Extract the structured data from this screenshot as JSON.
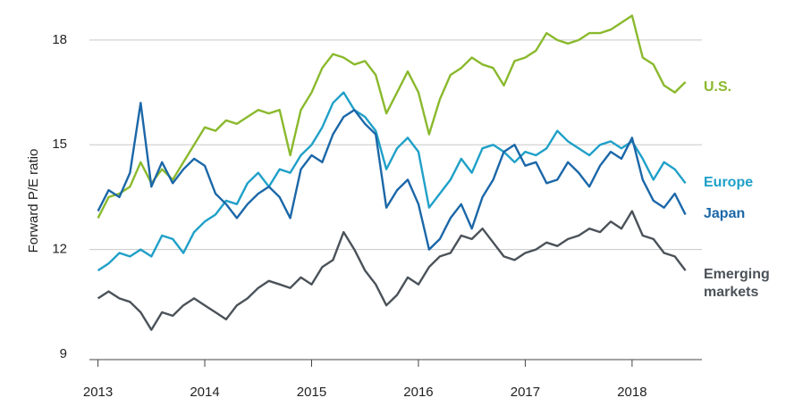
{
  "chart_data": {
    "type": "line",
    "ylabel": "Forward P/E ratio",
    "x": [
      2013.0,
      2013.1,
      2013.2,
      2013.3,
      2013.4,
      2013.5,
      2013.6,
      2013.7,
      2013.8,
      2013.9,
      2014.0,
      2014.1,
      2014.2,
      2014.3,
      2014.4,
      2014.5,
      2014.6,
      2014.7,
      2014.8,
      2014.9,
      2015.0,
      2015.1,
      2015.2,
      2015.3,
      2015.4,
      2015.5,
      2015.6,
      2015.7,
      2015.8,
      2015.9,
      2016.0,
      2016.1,
      2016.2,
      2016.3,
      2016.4,
      2016.5,
      2016.6,
      2016.7,
      2016.8,
      2016.9,
      2017.0,
      2017.1,
      2017.2,
      2017.3,
      2017.4,
      2017.5,
      2017.6,
      2017.7,
      2017.8,
      2017.9,
      2018.0,
      2018.1,
      2018.2,
      2018.3,
      2018.4,
      2018.5
    ],
    "series": [
      {
        "name": "U.S.",
        "color": "#8ab92d",
        "values": [
          12.9,
          13.5,
          13.6,
          13.8,
          14.5,
          13.9,
          14.3,
          14.0,
          14.5,
          15.0,
          15.5,
          15.4,
          15.7,
          15.6,
          15.8,
          16.0,
          15.9,
          16.0,
          14.7,
          16.0,
          16.5,
          17.2,
          17.6,
          17.5,
          17.3,
          17.4,
          17.0,
          15.9,
          16.5,
          17.1,
          16.5,
          15.3,
          16.3,
          17.0,
          17.2,
          17.5,
          17.3,
          17.2,
          16.7,
          17.4,
          17.5,
          17.7,
          18.2,
          18.0,
          17.9,
          18.0,
          18.2,
          18.2,
          18.3,
          18.5,
          18.7,
          17.5,
          17.3,
          16.7,
          16.5,
          16.8
        ]
      },
      {
        "name": "Europe",
        "color": "#1fa0c8",
        "values": [
          11.4,
          11.6,
          11.9,
          11.8,
          12.0,
          11.8,
          12.4,
          12.3,
          11.9,
          12.5,
          12.8,
          13.0,
          13.4,
          13.3,
          13.9,
          14.2,
          13.8,
          14.3,
          14.2,
          14.7,
          15.0,
          15.5,
          16.2,
          16.5,
          16.0,
          15.8,
          15.4,
          14.3,
          14.9,
          15.2,
          14.8,
          13.2,
          13.6,
          14.0,
          14.6,
          14.2,
          14.9,
          15.0,
          14.8,
          14.5,
          14.8,
          14.7,
          14.9,
          15.4,
          15.1,
          14.9,
          14.7,
          15.0,
          15.1,
          14.9,
          15.1,
          14.6,
          14.0,
          14.5,
          14.3,
          13.9
        ]
      },
      {
        "name": "Japan",
        "color": "#1b67a8",
        "values": [
          13.1,
          13.7,
          13.5,
          14.2,
          16.2,
          13.8,
          14.5,
          13.9,
          14.3,
          14.6,
          14.4,
          13.6,
          13.3,
          12.9,
          13.3,
          13.6,
          13.8,
          13.5,
          12.9,
          14.3,
          14.7,
          14.5,
          15.3,
          15.8,
          16.0,
          15.6,
          15.3,
          13.2,
          13.7,
          14.0,
          13.3,
          12.0,
          12.3,
          12.9,
          13.3,
          12.6,
          13.5,
          14.0,
          14.8,
          15.0,
          14.4,
          14.5,
          13.9,
          14.0,
          14.5,
          14.2,
          13.8,
          14.4,
          14.8,
          14.6,
          15.2,
          14.0,
          13.4,
          13.2,
          13.6,
          13.0
        ]
      },
      {
        "name": "Emerging markets",
        "color": "#4b5259",
        "values": [
          10.6,
          10.8,
          10.6,
          10.5,
          10.2,
          9.7,
          10.2,
          10.1,
          10.4,
          10.6,
          10.4,
          10.2,
          10.0,
          10.4,
          10.6,
          10.9,
          11.1,
          11.0,
          10.9,
          11.2,
          11.0,
          11.5,
          11.7,
          12.5,
          12.0,
          11.4,
          11.0,
          10.4,
          10.7,
          11.2,
          11.0,
          11.5,
          11.8,
          11.9,
          12.4,
          12.3,
          12.6,
          12.2,
          11.8,
          11.7,
          11.9,
          12.0,
          12.2,
          12.1,
          12.3,
          12.4,
          12.6,
          12.5,
          12.8,
          12.6,
          13.1,
          12.4,
          12.3,
          11.9,
          11.8,
          11.4
        ]
      }
    ],
    "xlim": [
      2012.92,
      2018.57
    ],
    "xticks": [
      2013,
      2014,
      2015,
      2016,
      2017,
      2018
    ],
    "ylim": [
      8.8,
      19
    ],
    "yticks": [
      9,
      12,
      15,
      18
    ],
    "grid": true
  }
}
